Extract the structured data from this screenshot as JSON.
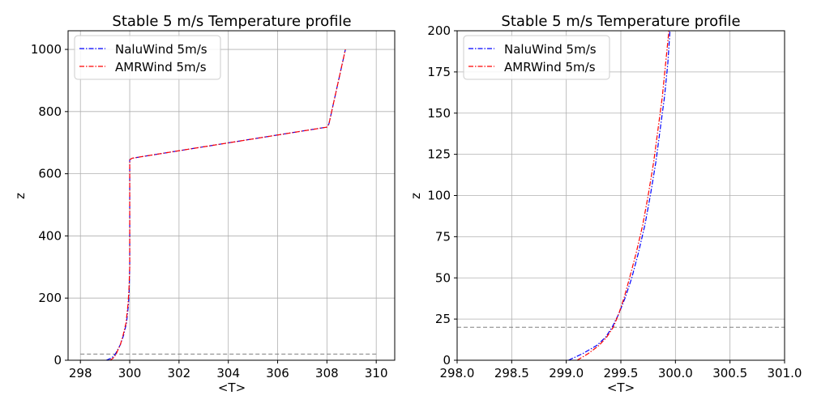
{
  "chart_data": [
    {
      "type": "line",
      "title": "Stable 5 m/s Temperature profile",
      "xlabel": "<T>",
      "ylabel": "z",
      "xlim": [
        297.5,
        310.75
      ],
      "ylim": [
        0,
        1060
      ],
      "xticks": [
        "298",
        "300",
        "302",
        "304",
        "306",
        "308",
        "310"
      ],
      "yticks": [
        "0",
        "200",
        "400",
        "600",
        "800",
        "1000"
      ],
      "grid": true,
      "legend": "upper-left",
      "reference_line": {
        "y": 20,
        "x_from": 298,
        "x_to": 310,
        "color": "#808080"
      },
      "series": [
        {
          "name": "NaluWind 5m/s",
          "color": "#0000ff",
          "points": [
            [
              299.05,
              0
            ],
            [
              299.2,
              5
            ],
            [
              299.3,
              10
            ],
            [
              299.42,
              20
            ],
            [
              299.52,
              35
            ],
            [
              299.62,
              50
            ],
            [
              299.75,
              80
            ],
            [
              299.87,
              120
            ],
            [
              299.95,
              180
            ],
            [
              299.98,
              230
            ],
            [
              300.0,
              300
            ],
            [
              300.0,
              500
            ],
            [
              300.0,
              645
            ],
            [
              300.1,
              650
            ],
            [
              308.0,
              750
            ],
            [
              308.08,
              760
            ],
            [
              308.75,
              1000
            ]
          ]
        },
        {
          "name": "AMRWind 5m/s",
          "color": "#ff0000",
          "points": [
            [
              299.2,
              0
            ],
            [
              299.3,
              5
            ],
            [
              299.37,
              10
            ],
            [
              299.45,
              20
            ],
            [
              299.55,
              38
            ],
            [
              299.62,
              50
            ],
            [
              299.73,
              80
            ],
            [
              299.85,
              120
            ],
            [
              299.93,
              180
            ],
            [
              299.97,
              230
            ],
            [
              300.0,
              300
            ],
            [
              300.0,
              500
            ],
            [
              300.0,
              645
            ],
            [
              300.1,
              650
            ],
            [
              308.0,
              750
            ],
            [
              308.08,
              760
            ],
            [
              308.75,
              1000
            ]
          ]
        }
      ]
    },
    {
      "type": "line",
      "title": "Stable 5 m/s Temperature profile",
      "xlabel": "<T>",
      "ylabel": "z",
      "xlim": [
        298.0,
        301.0
      ],
      "ylim": [
        0,
        200
      ],
      "xticks": [
        "298.0",
        "298.5",
        "299.0",
        "299.5",
        "300.0",
        "300.5",
        "301.0"
      ],
      "yticks": [
        "0",
        "25",
        "50",
        "75",
        "100",
        "125",
        "150",
        "175",
        "200"
      ],
      "grid": true,
      "legend": "upper-left",
      "reference_line": {
        "y": 20,
        "x_from": 298.0,
        "x_to": 301.0,
        "color": "#808080"
      },
      "series": [
        {
          "name": "NaluWind 5m/s",
          "color": "#0000ff",
          "points": [
            [
              299.02,
              0
            ],
            [
              299.15,
              4
            ],
            [
              299.28,
              9
            ],
            [
              299.36,
              14
            ],
            [
              299.42,
              20
            ],
            [
              299.48,
              28
            ],
            [
              299.54,
              38
            ],
            [
              299.6,
              50
            ],
            [
              299.66,
              65
            ],
            [
              299.72,
              82
            ],
            [
              299.77,
              100
            ],
            [
              299.82,
              120
            ],
            [
              299.86,
              140
            ],
            [
              299.9,
              160
            ],
            [
              299.93,
              180
            ],
            [
              299.95,
              200
            ]
          ]
        },
        {
          "name": "AMRWind 5m/s",
          "color": "#ff0000",
          "points": [
            [
              299.1,
              0
            ],
            [
              299.2,
              4
            ],
            [
              299.3,
              9
            ],
            [
              299.37,
              14
            ],
            [
              299.43,
              20
            ],
            [
              299.48,
              28
            ],
            [
              299.53,
              38
            ],
            [
              299.58,
              50
            ],
            [
              299.64,
              65
            ],
            [
              299.7,
              82
            ],
            [
              299.75,
              100
            ],
            [
              299.8,
              120
            ],
            [
              299.84,
              140
            ],
            [
              299.88,
              160
            ],
            [
              299.91,
              180
            ],
            [
              299.94,
              200
            ]
          ]
        }
      ]
    }
  ]
}
